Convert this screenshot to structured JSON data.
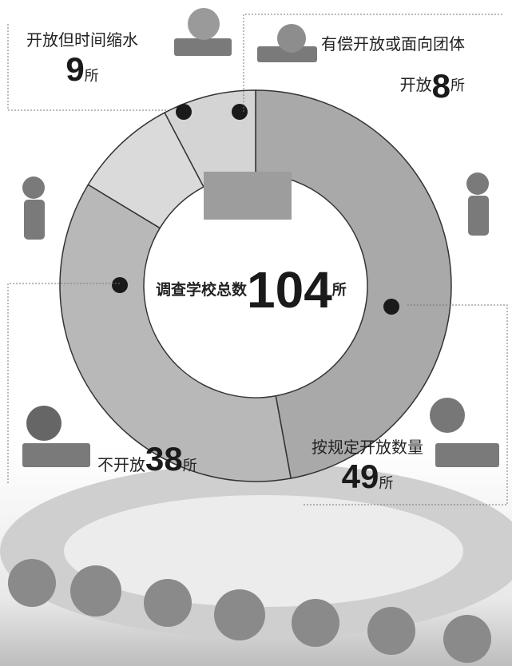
{
  "chart_data": {
    "type": "donut",
    "center_label": "调查学校总数",
    "total": 104,
    "total_unit": "所",
    "categories": [
      "按规定开放数量",
      "不开放",
      "开放但时间缩水",
      "有偿开放或面向团体开放"
    ],
    "values": [
      49,
      38,
      9,
      8
    ],
    "units": [
      "所",
      "所",
      "所",
      "所"
    ],
    "colors": [
      "#a9a9a9",
      "#b8b8b8",
      "#dadada",
      "#d4d4d4"
    ]
  }
}
